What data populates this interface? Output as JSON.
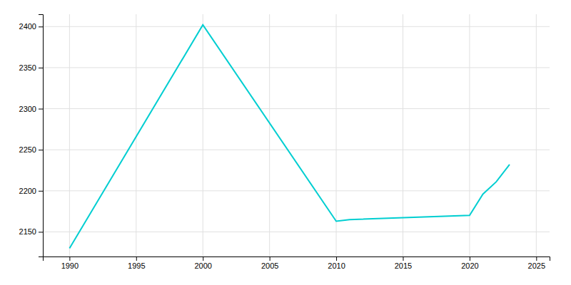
{
  "chart_data": {
    "type": "line",
    "x": [
      1990,
      2000,
      2010,
      2011,
      2020,
      2021,
      2022,
      2023
    ],
    "values": [
      2130,
      2402,
      2163,
      2165,
      2170,
      2196,
      2211,
      2232
    ],
    "color": "#00CED1",
    "xlim": [
      1988,
      2026
    ],
    "ylim": [
      2120,
      2415
    ],
    "xticks": [
      1990,
      1995,
      2000,
      2005,
      2010,
      2015,
      2020,
      2025
    ],
    "yticks": [
      2150,
      2200,
      2250,
      2300,
      2350,
      2400
    ],
    "grid": true
  }
}
